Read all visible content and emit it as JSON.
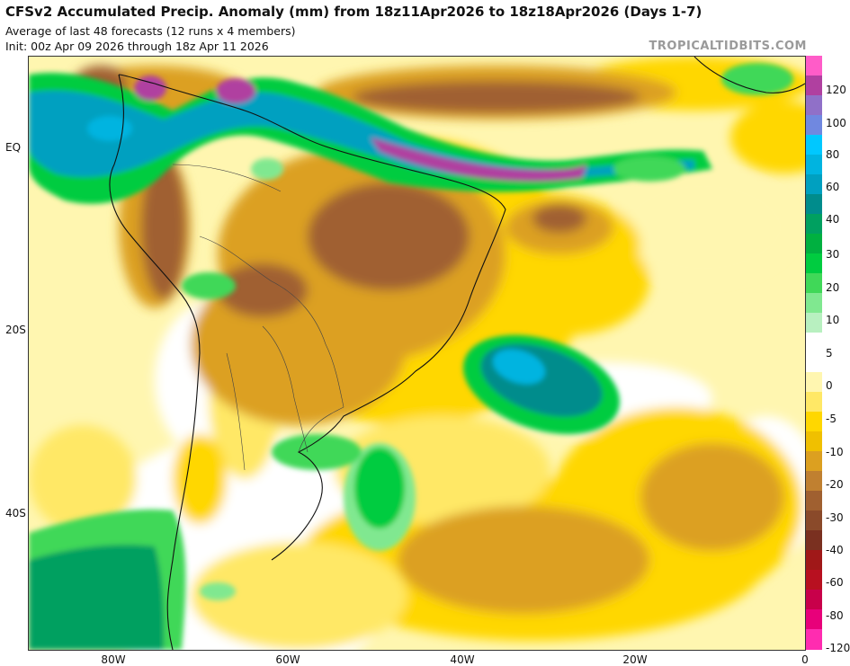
{
  "header": {
    "title": "CFSv2 Accumulated Precip. Anomaly (mm) from 18z11Apr2026 to 18z18Apr2026 (Days 1-7)",
    "subtitle_1": "Average of last 48 forecasts (12 runs x 4 members)",
    "subtitle_2": "Init: 00z Apr 09 2026 through 18z Apr 11 2026",
    "credit": "TROPICALTIDBITS.COM"
  },
  "axes": {
    "lat_labels": [
      "EQ",
      "20S",
      "40S"
    ],
    "lon_labels": [
      "80W",
      "60W",
      "40W",
      "20W",
      "0"
    ]
  },
  "colorbar": {
    "labels": [
      "120",
      "100",
      "80",
      "60",
      "40",
      "30",
      "20",
      "10",
      "5",
      "0",
      "-5",
      "-10",
      "-20",
      "-30",
      "-40",
      "-60",
      "-80",
      "-120"
    ],
    "colors": [
      "#ff5cc8",
      "#b040a0",
      "#9070c8",
      "#7088e0",
      "#00c8ff",
      "#00b4e0",
      "#00a0c0",
      "#008c8c",
      "#00a060",
      "#00b040",
      "#00cc40",
      "#40d858",
      "#80e890",
      "#b8f0c0",
      "#ffffff",
      "#ffffff",
      "#fff6b0",
      "#ffe866",
      "#ffd700",
      "#f0c000",
      "#dca020",
      "#c08030",
      "#a06030",
      "#8a4a2a",
      "#7a3020",
      "#a01818",
      "#b81020",
      "#c8004a",
      "#e8007a",
      "#ff2cb0"
    ]
  }
}
